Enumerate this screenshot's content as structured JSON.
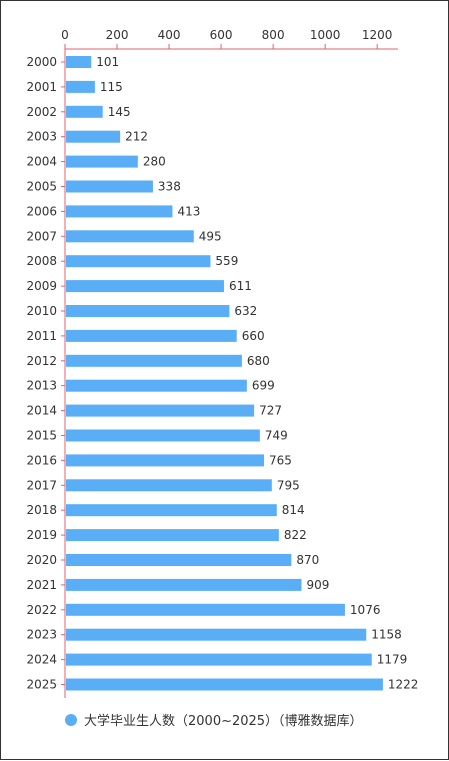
{
  "chart_data": {
    "type": "bar",
    "orientation": "horizontal",
    "categories": [
      "2000",
      "2001",
      "2002",
      "2003",
      "2004",
      "2005",
      "2006",
      "2007",
      "2008",
      "2009",
      "2010",
      "2011",
      "2012",
      "2013",
      "2014",
      "2015",
      "2016",
      "2017",
      "2018",
      "2019",
      "2020",
      "2021",
      "2022",
      "2023",
      "2024",
      "2025"
    ],
    "series": [
      {
        "name": "大学毕业生人数（2000~2025）（博雅数据库）",
        "color": "#5aaef5",
        "values": [
          101,
          115,
          145,
          212,
          280,
          338,
          413,
          495,
          559,
          611,
          632,
          660,
          680,
          699,
          727,
          749,
          765,
          795,
          814,
          822,
          870,
          909,
          1076,
          1158,
          1179,
          1222
        ]
      }
    ],
    "xlim": [
      0,
      1280
    ],
    "x_ticks": [
      0,
      200,
      400,
      600,
      800,
      1000,
      1200
    ],
    "axis_position": "top",
    "axis_color": "#e06070",
    "grid": false,
    "legend_position": "bottom",
    "title": ""
  }
}
